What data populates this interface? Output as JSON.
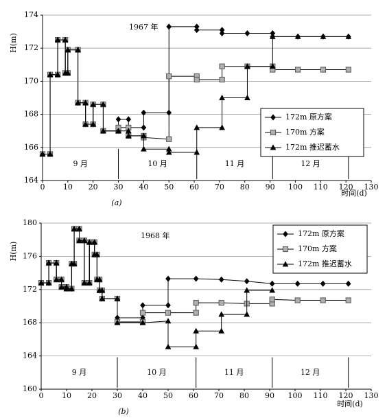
{
  "chart_data": [
    {
      "type": "step-line",
      "annotation": "1967 年",
      "caption": "(a)",
      "xlabel": "时间(d)",
      "ylabel": "H(m)",
      "xlim": [
        0,
        130
      ],
      "xticks": [
        0,
        10,
        20,
        30,
        40,
        50,
        60,
        70,
        80,
        90,
        100,
        110,
        120,
        130
      ],
      "ylim": [
        164,
        174
      ],
      "yticks": [
        164,
        166,
        168,
        170,
        172,
        174
      ],
      "grid": true,
      "legend": "upper right",
      "month_labels": [
        "9 月",
        "10 月",
        "11 月",
        "12 月"
      ],
      "month_dividers": [
        30,
        61,
        91,
        121
      ],
      "series": [
        {
          "name": "172m 原方案",
          "marker": "diamond",
          "color": "#000000",
          "x": [
            0,
            3,
            3,
            6,
            6,
            9,
            9,
            10,
            10,
            14,
            14,
            17,
            17,
            20,
            20,
            24,
            24,
            30,
            30,
            34,
            34,
            40,
            40,
            50,
            50,
            61,
            61,
            71,
            71,
            81,
            91,
            91,
            101,
            111,
            121
          ],
          "values": [
            165.6,
            165.6,
            170.4,
            170.4,
            172.5,
            172.5,
            170.5,
            170.5,
            171.9,
            171.9,
            168.7,
            168.7,
            167.4,
            167.4,
            168.6,
            168.6,
            167,
            167,
            167.7,
            167.7,
            167.2,
            167.2,
            168.1,
            168.1,
            173.3,
            173.3,
            173.1,
            173.1,
            172.9,
            172.9,
            172.9,
            172.7,
            172.7,
            172.7,
            172.7
          ]
        },
        {
          "name": "170m 方案",
          "marker": "square",
          "color": "#b0b0b0",
          "x": [
            0,
            3,
            3,
            6,
            6,
            9,
            9,
            10,
            10,
            14,
            14,
            17,
            17,
            20,
            20,
            24,
            24,
            30,
            30,
            34,
            34,
            40,
            40,
            50,
            50,
            61,
            61,
            71,
            71,
            81,
            91,
            91,
            101,
            111,
            121
          ],
          "values": [
            165.6,
            165.6,
            170.4,
            170.4,
            172.5,
            172.5,
            170.5,
            170.5,
            171.9,
            171.9,
            168.7,
            168.7,
            167.4,
            167.4,
            168.6,
            168.6,
            167,
            167,
            167.2,
            167.2,
            166.7,
            166.7,
            166.6,
            166.5,
            170.3,
            170.3,
            170.1,
            170.1,
            170.9,
            170.9,
            170.9,
            170.7,
            170.7,
            170.7,
            170.7
          ]
        },
        {
          "name": "172m 推迟蓄水",
          "marker": "triangle",
          "color": "#000000",
          "x": [
            0,
            3,
            3,
            6,
            6,
            9,
            9,
            10,
            10,
            14,
            14,
            17,
            17,
            20,
            20,
            24,
            24,
            30,
            30,
            34,
            34,
            40,
            40,
            50,
            50,
            61,
            61,
            71,
            71,
            81,
            81,
            91,
            91,
            101,
            111,
            121
          ],
          "values": [
            165.6,
            165.6,
            170.4,
            170.4,
            172.5,
            172.5,
            170.5,
            170.5,
            171.9,
            171.9,
            168.7,
            168.7,
            167.4,
            167.4,
            168.6,
            168.6,
            167,
            167,
            167,
            167,
            166.7,
            166.7,
            165.9,
            165.9,
            165.7,
            165.7,
            167.2,
            167.2,
            169,
            169,
            170.9,
            170.9,
            172.7,
            172.7,
            172.7,
            172.7
          ]
        }
      ]
    },
    {
      "type": "step-line",
      "annotation": "1968 年",
      "caption": "(b)",
      "xlabel": "时间(d)",
      "ylabel": "H(m)",
      "xlim": [
        0,
        130
      ],
      "xticks": [
        0,
        10,
        20,
        30,
        40,
        50,
        60,
        70,
        80,
        90,
        100,
        110,
        120,
        130
      ],
      "ylim": [
        160,
        180
      ],
      "yticks": [
        160,
        164,
        168,
        172,
        176,
        180
      ],
      "grid": true,
      "legend": "upper right",
      "month_labels": [
        "9 月",
        "10 月",
        "11 月",
        "12 月"
      ],
      "month_dividers": [
        30,
        61,
        91,
        121
      ],
      "series": [
        {
          "name": "172m 原方案",
          "marker": "diamond",
          "color": "#000000",
          "x": [
            0,
            3,
            3,
            6,
            6,
            8,
            8,
            10,
            10,
            12,
            12,
            13,
            13,
            15,
            15,
            17,
            17,
            19,
            19,
            21,
            21,
            22,
            22,
            23,
            23,
            24,
            24,
            30,
            30,
            40,
            40,
            50,
            50,
            61,
            71,
            81,
            91,
            101,
            111,
            121
          ],
          "values": [
            172.8,
            172.8,
            175.2,
            175.2,
            173.2,
            173.2,
            172.3,
            172.3,
            172.1,
            172.1,
            175.1,
            175.1,
            179.3,
            179.3,
            177.9,
            177.9,
            172.8,
            172.8,
            177.7,
            177.7,
            176.2,
            176.2,
            173.2,
            173.2,
            171.9,
            171.9,
            170.9,
            170.9,
            168.6,
            168.6,
            170.1,
            170.1,
            173.3,
            173.3,
            173.2,
            173,
            172.7,
            172.7,
            172.7,
            172.7
          ]
        },
        {
          "name": "170m 方案",
          "marker": "square",
          "color": "#b0b0b0",
          "x": [
            0,
            3,
            3,
            6,
            6,
            8,
            8,
            10,
            10,
            12,
            12,
            13,
            13,
            15,
            15,
            17,
            17,
            19,
            19,
            21,
            21,
            22,
            22,
            23,
            23,
            24,
            24,
            30,
            30,
            40,
            40,
            50,
            61,
            61,
            71,
            81,
            91,
            91,
            101,
            111,
            121
          ],
          "values": [
            172.8,
            172.8,
            175.2,
            175.2,
            173.2,
            173.2,
            172.3,
            172.3,
            172.1,
            172.1,
            175.1,
            175.1,
            179.3,
            179.3,
            177.9,
            177.9,
            172.8,
            172.8,
            177.7,
            177.7,
            176.2,
            176.2,
            173.2,
            173.2,
            171.9,
            171.9,
            170.9,
            170.9,
            168.1,
            168.1,
            169.2,
            169.2,
            169.2,
            170.4,
            170.4,
            170.3,
            170.3,
            170.8,
            170.7,
            170.7,
            170.7
          ]
        },
        {
          "name": "172m 推迟蓄水",
          "marker": "triangle",
          "color": "#000000",
          "x": [
            0,
            3,
            3,
            6,
            6,
            8,
            8,
            10,
            10,
            12,
            12,
            13,
            13,
            15,
            15,
            17,
            17,
            19,
            19,
            21,
            21,
            22,
            22,
            23,
            23,
            24,
            24,
            30,
            30,
            40,
            50,
            50,
            61,
            61,
            71,
            71,
            81,
            81,
            91
          ],
          "values": [
            172.8,
            172.8,
            175.2,
            175.2,
            173.2,
            173.2,
            172.3,
            172.3,
            172.1,
            172.1,
            175.1,
            175.1,
            179.3,
            179.3,
            177.9,
            177.9,
            172.8,
            172.8,
            177.7,
            177.7,
            176.2,
            176.2,
            173.2,
            173.2,
            171.9,
            171.9,
            170.9,
            170.9,
            168,
            168,
            168.2,
            165.1,
            165.1,
            167,
            167,
            169,
            169,
            171.9,
            171.9
          ]
        }
      ]
    }
  ]
}
